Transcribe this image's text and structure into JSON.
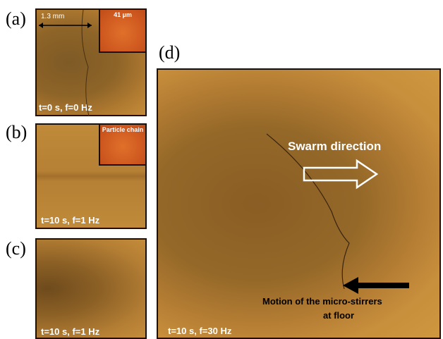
{
  "figure": {
    "panels": [
      {
        "label": "(a)",
        "caption": "t=0 s, f=0 Hz",
        "scale_bar": "1.3 mm",
        "inset": "41 µm"
      },
      {
        "label": "(b)",
        "caption": "t=10 s, f=1 Hz",
        "inset": "Particle chain"
      },
      {
        "label": "(c)",
        "caption": "t=10 s, f=1 Hz"
      },
      {
        "label": "(d)",
        "caption": "t=10 s, f=30 Hz",
        "annotations": [
          "Swarm direction",
          "Motion of the micro-stirrers",
          "at floor"
        ]
      }
    ]
  }
}
